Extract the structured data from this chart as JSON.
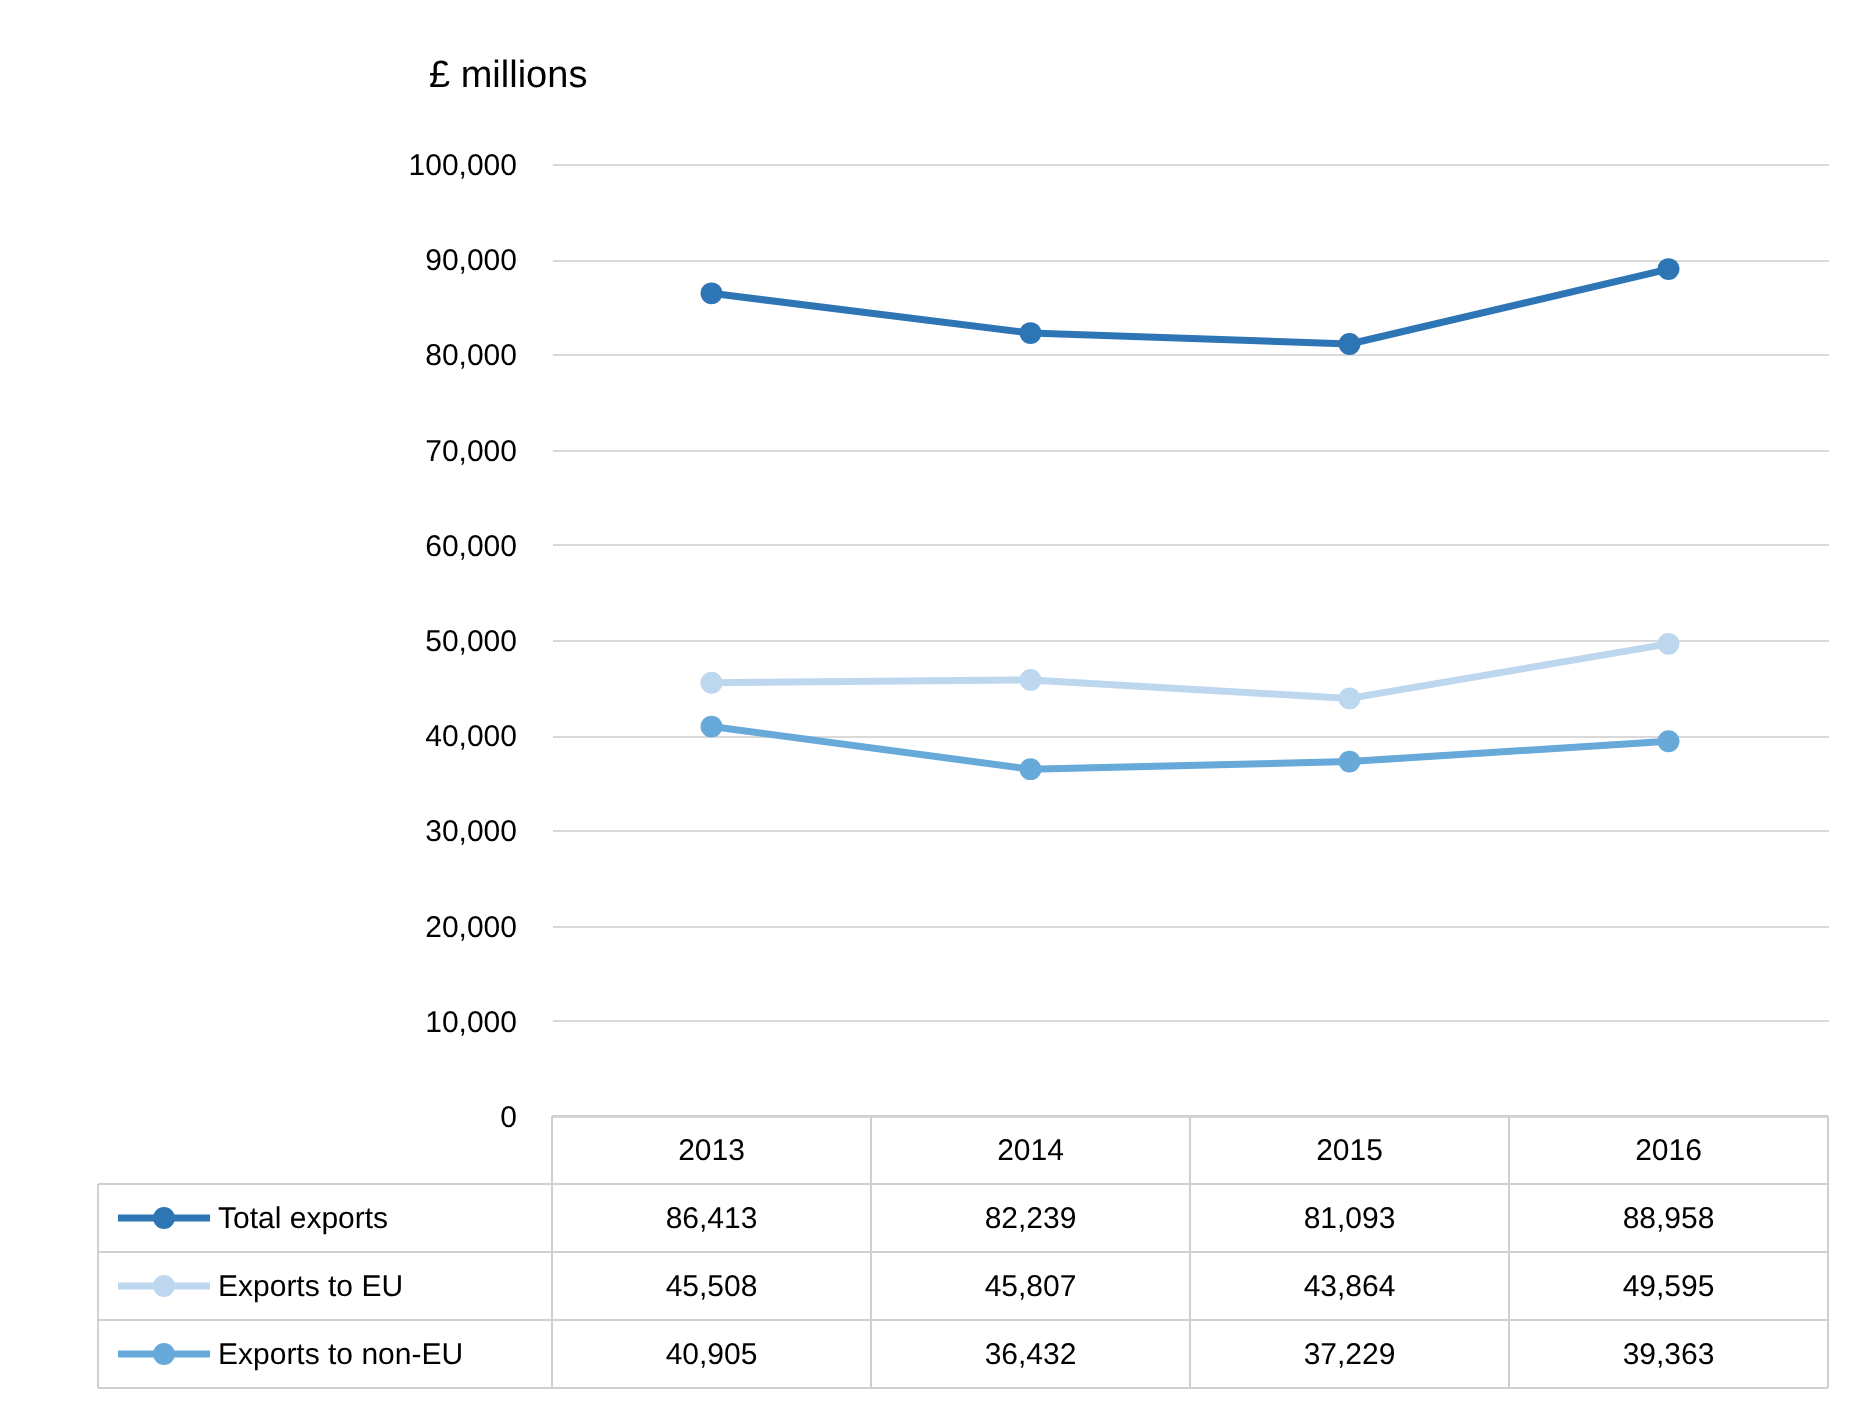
{
  "chart_data": {
    "type": "line",
    "ylabel": "£ millions",
    "categories": [
      "2013",
      "2014",
      "2015",
      "2016"
    ],
    "series": [
      {
        "name": "Total exports",
        "color": "#2e75b6",
        "values": [
          86413,
          82239,
          81093,
          88958
        ],
        "value_labels": [
          "86,413",
          "82,239",
          "81,093",
          "88,958"
        ]
      },
      {
        "name": "Exports to EU",
        "color": "#bdd7ee",
        "values": [
          45508,
          45807,
          43864,
          49595
        ],
        "value_labels": [
          "45,508",
          "45,807",
          "43,864",
          "49,595"
        ]
      },
      {
        "name": "Exports to non-EU",
        "color": "#67a9d9",
        "values": [
          40905,
          36432,
          37229,
          39363
        ],
        "value_labels": [
          "40,905",
          "36,432",
          "37,229",
          "39,363"
        ]
      }
    ],
    "ylim": [
      0,
      100000
    ],
    "yticks": [
      0,
      {
        "value": 10000,
        "label": "10,000"
      },
      {
        "value": 20000,
        "label": "20,000"
      },
      {
        "value": 30000,
        "label": "30,000"
      },
      {
        "value": 40000,
        "label": "40,000"
      },
      {
        "value": 50000,
        "label": "50,000"
      },
      {
        "value": 60000,
        "label": "60,000"
      },
      {
        "value": 70000,
        "label": "70,000"
      },
      {
        "value": 80000,
        "label": "80,000"
      },
      {
        "value": 90000,
        "label": "90,000"
      },
      {
        "value": 100000,
        "label": "100,000"
      }
    ],
    "grid": "y",
    "marker": "circle",
    "line_style": "solid",
    "legend": "bottom"
  }
}
